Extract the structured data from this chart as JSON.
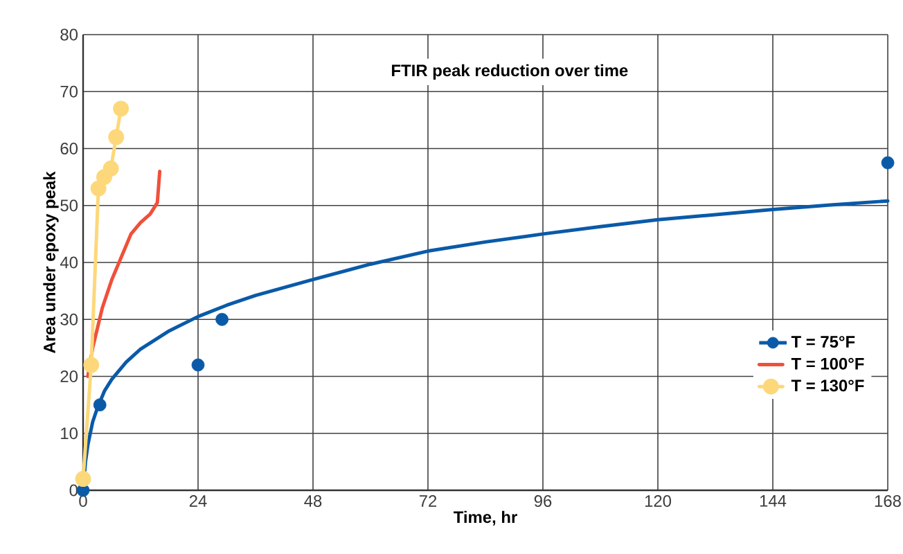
{
  "chart_data": {
    "type": "line",
    "title": "FTIR peak reduction over time",
    "xlabel": "Time, hr",
    "ylabel": "Area under epoxy peak",
    "xlim": [
      0,
      168
    ],
    "xticks": [
      0,
      24,
      48,
      72,
      96,
      120,
      144,
      168
    ],
    "ylim": [
      0,
      80
    ],
    "yticks": [
      0,
      10,
      20,
      30,
      40,
      50,
      60,
      70,
      80
    ],
    "grid": true,
    "legend": "bottom right",
    "series": [
      {
        "name": "T = 75°F",
        "type": "scatter",
        "marker": "circle",
        "color": "#0a5aa8",
        "x": [
          0,
          3.5,
          24,
          29,
          168
        ],
        "values": [
          0,
          15,
          22,
          30,
          57.5
        ]
      },
      {
        "name": "T = 100°F",
        "marker": "none",
        "color": "#f0503a",
        "x": [
          1,
          2,
          4,
          6,
          8,
          10,
          12,
          14,
          15.5,
          16
        ],
        "values": [
          20,
          25,
          32,
          37,
          41,
          45,
          47,
          48.5,
          50.5,
          56
        ]
      },
      {
        "name": "T = 130°F",
        "marker": "circle",
        "color": "#fdd87a",
        "x": [
          0,
          1.7,
          3.2,
          4.4,
          5.8,
          6.9,
          7.9
        ],
        "values": [
          2,
          22,
          53,
          55,
          56.5,
          62,
          67
        ]
      },
      {
        "marker": "none",
        "color": "#0a5aa8",
        "x": [
          0,
          0.5,
          1,
          2,
          3,
          4.5,
          6,
          9,
          12,
          18,
          24,
          30,
          36,
          48,
          60,
          72,
          84,
          96,
          108,
          120,
          132,
          144,
          156,
          168
        ],
        "values": [
          0,
          5,
          8,
          12,
          14.5,
          17.5,
          19.5,
          22.5,
          24.8,
          28,
          30.5,
          32.5,
          34.2,
          37,
          39.7,
          42,
          43.6,
          45,
          46.3,
          47.5,
          48.4,
          49.3,
          50.1,
          50.8
        ]
      }
    ]
  }
}
